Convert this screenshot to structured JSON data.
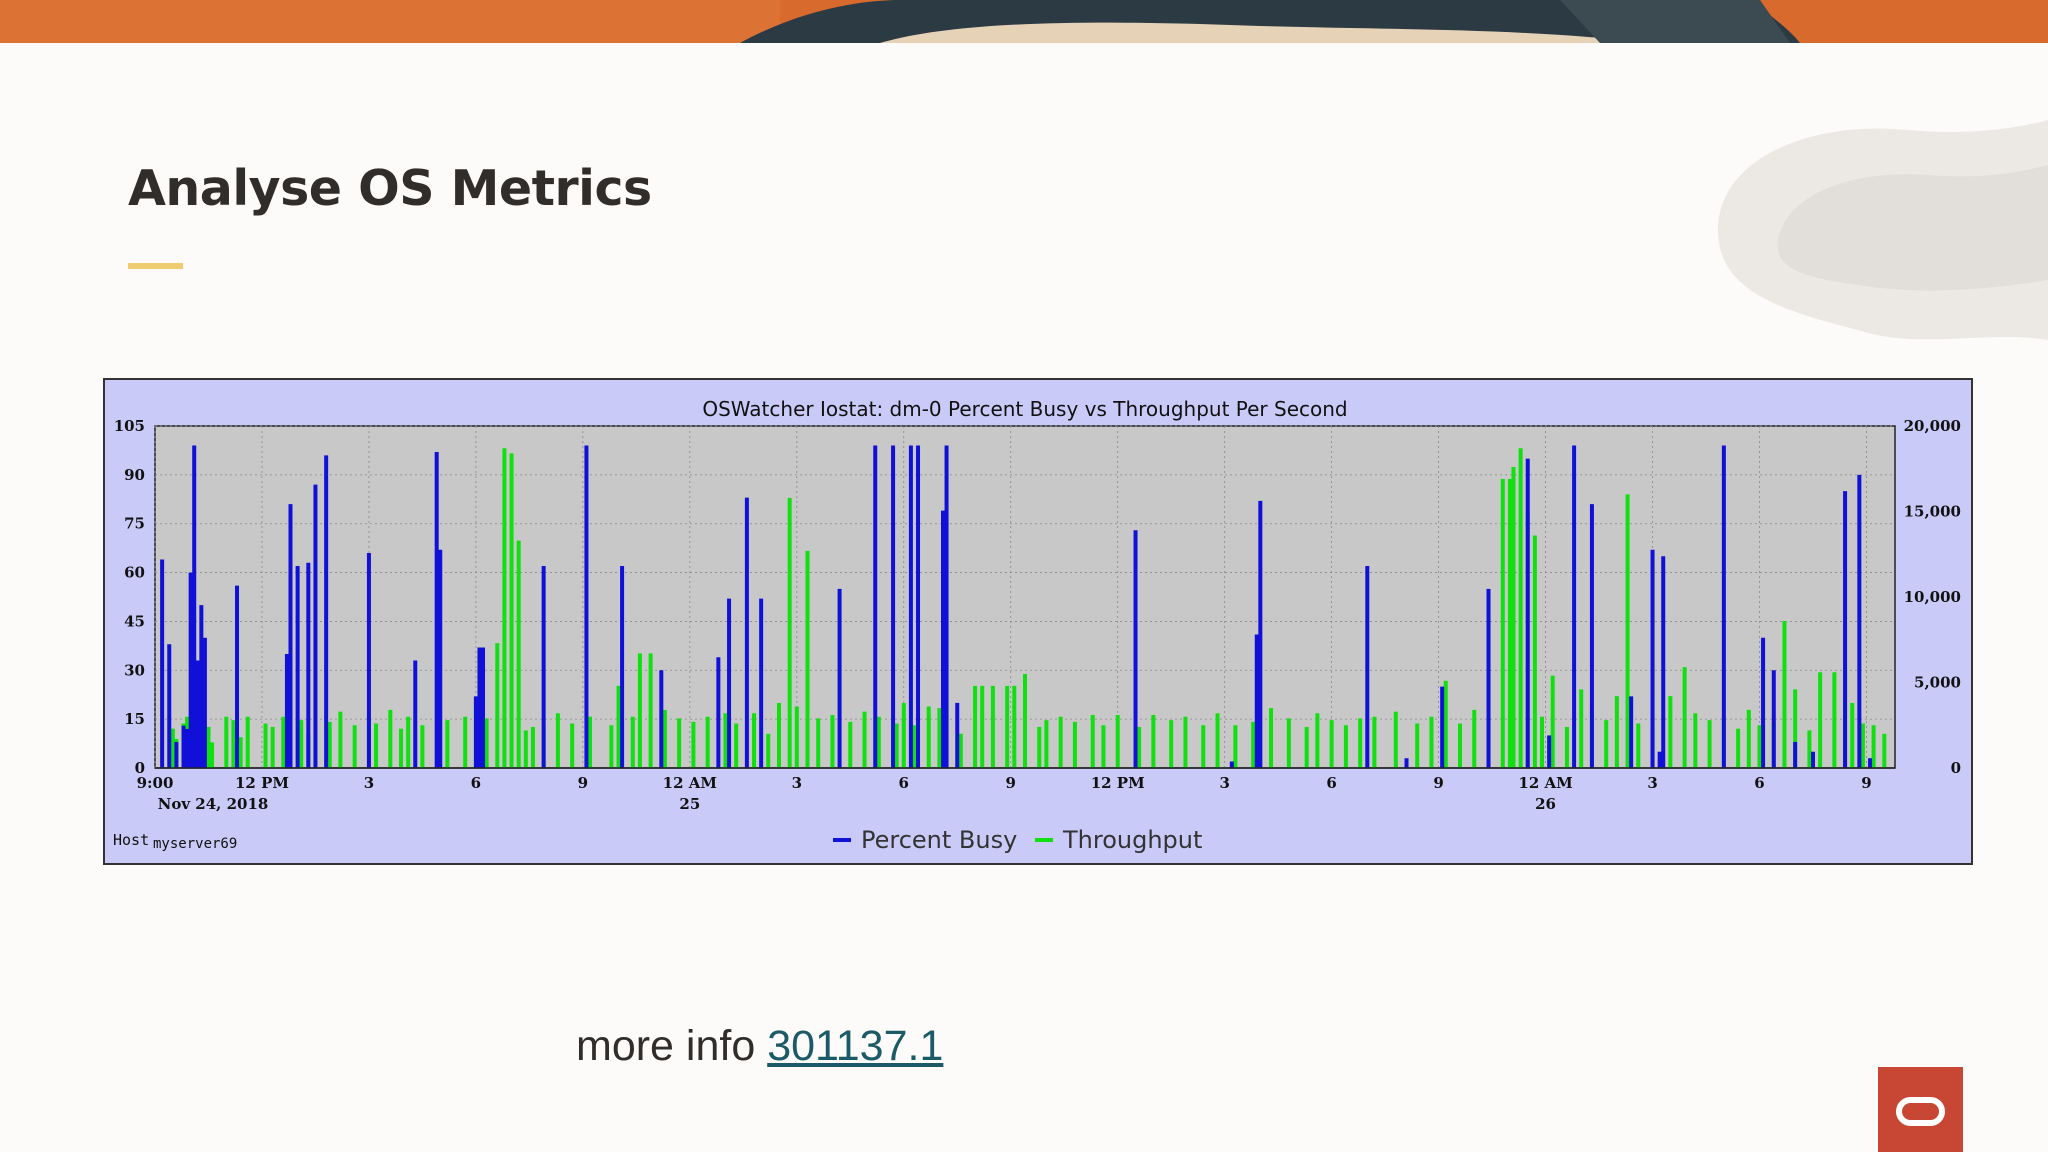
{
  "slide": {
    "title": "Analyse OS Metrics",
    "more_info_label": "more info",
    "more_info_link": "301137.1",
    "accent_color": "#f0cc71",
    "logo_color": "#c74634"
  },
  "chart_data": {
    "type": "bar",
    "title": "OSWatcher Iostat: dm-0 Percent Busy vs Throughput Per Second",
    "host_label": "Host",
    "host_value": "myserver69",
    "x_ticks": [
      {
        "label": "9:00",
        "sub": "Nov 24, 2018",
        "hour": 0
      },
      {
        "label": "12 PM",
        "sub": "",
        "hour": 3
      },
      {
        "label": "3",
        "sub": "",
        "hour": 6
      },
      {
        "label": "6",
        "sub": "",
        "hour": 9
      },
      {
        "label": "9",
        "sub": "",
        "hour": 12
      },
      {
        "label": "12 AM",
        "sub": "25",
        "hour": 15
      },
      {
        "label": "3",
        "sub": "",
        "hour": 18
      },
      {
        "label": "6",
        "sub": "",
        "hour": 21
      },
      {
        "label": "9",
        "sub": "",
        "hour": 24
      },
      {
        "label": "12 PM",
        "sub": "",
        "hour": 27
      },
      {
        "label": "3",
        "sub": "",
        "hour": 30
      },
      {
        "label": "6",
        "sub": "",
        "hour": 33
      },
      {
        "label": "9",
        "sub": "",
        "hour": 36
      },
      {
        "label": "12 AM",
        "sub": "26",
        "hour": 39
      },
      {
        "label": "3",
        "sub": "",
        "hour": 42
      },
      {
        "label": "6",
        "sub": "",
        "hour": 45
      },
      {
        "label": "9",
        "sub": "",
        "hour": 48
      }
    ],
    "x_range_hours": [
      0,
      48.8
    ],
    "y_left": {
      "min": 0,
      "max": 105,
      "ticks": [
        "0",
        "15",
        "30",
        "45",
        "60",
        "75",
        "90",
        "105"
      ]
    },
    "y_right": {
      "min": 0,
      "max": 20000,
      "ticks": [
        "0",
        "5,000",
        "10,000",
        "15,000",
        "20,000"
      ]
    },
    "grid": true,
    "legend_position": "bottom-center",
    "series": [
      {
        "name": "Percent Busy",
        "axis": "left",
        "color": "#1010d8",
        "points": [
          [
            0.2,
            64
          ],
          [
            0.4,
            38
          ],
          [
            0.6,
            8
          ],
          [
            0.8,
            13
          ],
          [
            0.9,
            12
          ],
          [
            1.0,
            60
          ],
          [
            1.2,
            33
          ],
          [
            1.1,
            99
          ],
          [
            1.3,
            50
          ],
          [
            1.4,
            40
          ],
          [
            2.3,
            56
          ],
          [
            3.7,
            35
          ],
          [
            3.8,
            81
          ],
          [
            4.0,
            62
          ],
          [
            4.3,
            63
          ],
          [
            4.5,
            87
          ],
          [
            4.8,
            96
          ],
          [
            6.0,
            66
          ],
          [
            7.3,
            33
          ],
          [
            7.9,
            97
          ],
          [
            8.0,
            67
          ],
          [
            9.1,
            37
          ],
          [
            9.2,
            37
          ],
          [
            9.0,
            22
          ],
          [
            10.9,
            62
          ],
          [
            12.1,
            99
          ],
          [
            13.1,
            62
          ],
          [
            14.2,
            30
          ],
          [
            15.8,
            34
          ],
          [
            16.1,
            52
          ],
          [
            16.6,
            83
          ],
          [
            17.0,
            52
          ],
          [
            19.2,
            55
          ],
          [
            20.2,
            99
          ],
          [
            20.7,
            99
          ],
          [
            21.2,
            99
          ],
          [
            21.4,
            99
          ],
          [
            22.1,
            79
          ],
          [
            22.2,
            99
          ],
          [
            22.5,
            20
          ],
          [
            27.5,
            73
          ],
          [
            30.2,
            2
          ],
          [
            30.9,
            41
          ],
          [
            31.0,
            82
          ],
          [
            34.0,
            62
          ],
          [
            35.1,
            3
          ],
          [
            36.1,
            25
          ],
          [
            37.4,
            55
          ],
          [
            38.5,
            95
          ],
          [
            39.1,
            10
          ],
          [
            39.8,
            99
          ],
          [
            40.3,
            81
          ],
          [
            41.4,
            22
          ],
          [
            42.0,
            67
          ],
          [
            42.3,
            65
          ],
          [
            42.2,
            5
          ],
          [
            44.0,
            99
          ],
          [
            45.1,
            40
          ],
          [
            45.4,
            30
          ],
          [
            46,
            8
          ],
          [
            47.4,
            85
          ],
          [
            47.8,
            90
          ],
          [
            46.5,
            5
          ],
          [
            48.1,
            3
          ]
        ]
      },
      {
        "name": "Throughput",
        "axis": "right",
        "color": "#10e010",
        "points": [
          [
            0.5,
            2300
          ],
          [
            0.6,
            1700
          ],
          [
            0.8,
            2600
          ],
          [
            0.9,
            3000
          ],
          [
            1.2,
            2700
          ],
          [
            1.5,
            2400
          ],
          [
            1.6,
            1500
          ],
          [
            2.0,
            3000
          ],
          [
            2.2,
            2800
          ],
          [
            2.4,
            1800
          ],
          [
            2.6,
            3000
          ],
          [
            3.1,
            2600
          ],
          [
            3.3,
            2400
          ],
          [
            3.6,
            3000
          ],
          [
            4.1,
            2800
          ],
          [
            4.3,
            2000
          ],
          [
            4.9,
            2700
          ],
          [
            5.2,
            3300
          ],
          [
            5.6,
            2500
          ],
          [
            6.0,
            3000
          ],
          [
            6.2,
            2600
          ],
          [
            6.6,
            3400
          ],
          [
            6.9,
            2300
          ],
          [
            7.1,
            3000
          ],
          [
            7.5,
            2500
          ],
          [
            8.2,
            2800
          ],
          [
            8.7,
            3000
          ],
          [
            9.0,
            4000
          ],
          [
            9.3,
            2900
          ],
          [
            9.6,
            7300
          ],
          [
            9.8,
            18700
          ],
          [
            10.0,
            18400
          ],
          [
            10.2,
            13300
          ],
          [
            10.4,
            2200
          ],
          [
            10.6,
            2400
          ],
          [
            10.9,
            2500
          ],
          [
            11.3,
            3200
          ],
          [
            11.7,
            2600
          ],
          [
            12.2,
            3000
          ],
          [
            12.8,
            2500
          ],
          [
            13.0,
            4800
          ],
          [
            13.4,
            3000
          ],
          [
            13.6,
            6700
          ],
          [
            13.9,
            6700
          ],
          [
            14.3,
            3400
          ],
          [
            14.7,
            2900
          ],
          [
            15.1,
            2700
          ],
          [
            15.5,
            3000
          ],
          [
            16.0,
            3200
          ],
          [
            16.3,
            2600
          ],
          [
            16.8,
            3200
          ],
          [
            17.2,
            2000
          ],
          [
            17.5,
            3800
          ],
          [
            17.8,
            15800
          ],
          [
            18.0,
            3600
          ],
          [
            18.3,
            12700
          ],
          [
            18.6,
            2900
          ],
          [
            19.0,
            3100
          ],
          [
            19.5,
            2700
          ],
          [
            19.9,
            3300
          ],
          [
            20.3,
            3000
          ],
          [
            20.8,
            2600
          ],
          [
            21.0,
            3800
          ],
          [
            21.3,
            2500
          ],
          [
            21.7,
            3600
          ],
          [
            22.0,
            3500
          ],
          [
            22.6,
            2000
          ],
          [
            23.0,
            4800
          ],
          [
            23.2,
            4800
          ],
          [
            23.5,
            4800
          ],
          [
            23.9,
            4800
          ],
          [
            24.1,
            4800
          ],
          [
            24.4,
            5500
          ],
          [
            24.8,
            2400
          ],
          [
            25.0,
            2800
          ],
          [
            25.4,
            3000
          ],
          [
            25.8,
            2700
          ],
          [
            26.3,
            3100
          ],
          [
            26.6,
            2500
          ],
          [
            27.0,
            3100
          ],
          [
            27.6,
            2400
          ],
          [
            28.0,
            3100
          ],
          [
            28.5,
            2800
          ],
          [
            28.9,
            3000
          ],
          [
            29.4,
            2500
          ],
          [
            29.8,
            3200
          ],
          [
            30.3,
            2500
          ],
          [
            30.8,
            2700
          ],
          [
            31.3,
            3500
          ],
          [
            31.8,
            2900
          ],
          [
            32.3,
            2400
          ],
          [
            32.6,
            3200
          ],
          [
            33.0,
            2800
          ],
          [
            33.4,
            2500
          ],
          [
            33.8,
            2900
          ],
          [
            34.2,
            3000
          ],
          [
            34.8,
            3300
          ],
          [
            35.4,
            2600
          ],
          [
            35.8,
            3000
          ],
          [
            36.2,
            5100
          ],
          [
            36.6,
            2600
          ],
          [
            37.0,
            3400
          ],
          [
            37.4,
            2800
          ],
          [
            37.8,
            16900
          ],
          [
            38.0,
            16900
          ],
          [
            38.1,
            17600
          ],
          [
            38.3,
            18700
          ],
          [
            38.5,
            15000
          ],
          [
            38.7,
            13600
          ],
          [
            38.9,
            3000
          ],
          [
            39.2,
            5400
          ],
          [
            39.6,
            2400
          ],
          [
            40.0,
            4600
          ],
          [
            40.3,
            3400
          ],
          [
            40.7,
            2800
          ],
          [
            41.0,
            4200
          ],
          [
            41.3,
            16000
          ],
          [
            41.6,
            2600
          ],
          [
            42.0,
            2500
          ],
          [
            42.5,
            4200
          ],
          [
            42.9,
            5900
          ],
          [
            43.2,
            3200
          ],
          [
            43.6,
            2800
          ],
          [
            44.0,
            3000
          ],
          [
            44.4,
            2300
          ],
          [
            44.7,
            3400
          ],
          [
            45.0,
            2500
          ],
          [
            45.4,
            2700
          ],
          [
            45.7,
            8600
          ],
          [
            46.0,
            4600
          ],
          [
            46.4,
            2200
          ],
          [
            46.7,
            5600
          ],
          [
            47.1,
            5600
          ],
          [
            47.4,
            5900
          ],
          [
            47.6,
            3800
          ],
          [
            47.9,
            2600
          ],
          [
            48.2,
            2500
          ],
          [
            48.5,
            2000
          ]
        ]
      }
    ]
  }
}
